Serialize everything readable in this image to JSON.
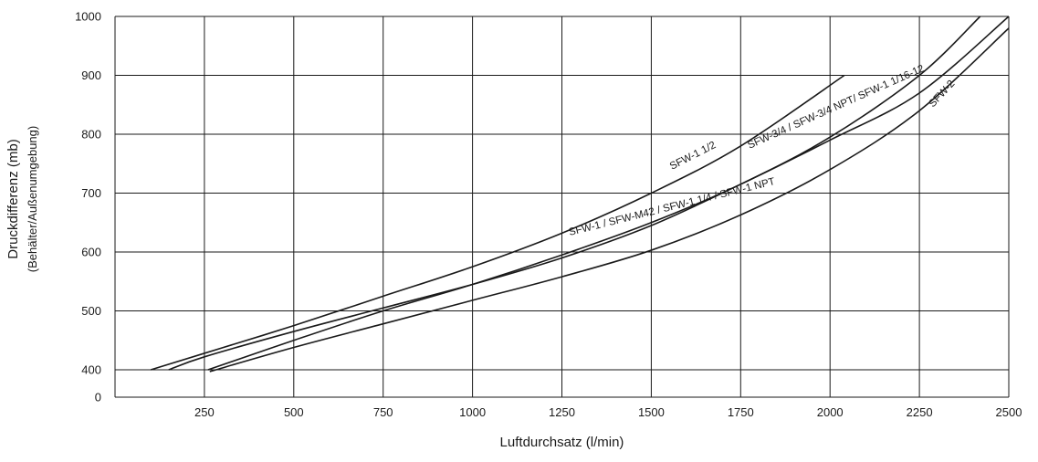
{
  "chart_data": {
    "type": "line",
    "title": "",
    "xlabel": "Luftdurchsatz (l/min)",
    "ylabel": "Druckdifferenz (mb)",
    "ylabel_sub": "(Behälter/Außenumgebung)",
    "xlim": [
      0,
      2500
    ],
    "ylim": [
      300,
      1000
    ],
    "x_ticks": [
      250,
      500,
      750,
      1000,
      1250,
      1500,
      1750,
      2000,
      2250,
      2500
    ],
    "y_ticks": [
      400,
      500,
      600,
      700,
      800,
      900,
      1000
    ],
    "y_origin_label": "0",
    "grid": true,
    "legend": "none",
    "series": [
      {
        "name": "SFW-1 1/2",
        "x": [
          100,
          250,
          500,
          750,
          1000,
          1250,
          1500,
          1750,
          2040
        ],
        "y": [
          400,
          428,
          475,
          525,
          575,
          632,
          700,
          780,
          900
        ]
      },
      {
        "name": "SFW-3/4 / SFW-3/4 NPT/ SFW-1 1/16-12",
        "x": [
          150,
          250,
          500,
          750,
          1000,
          1250,
          1500,
          1750,
          2000,
          2250,
          2500
        ],
        "y": [
          400,
          422,
          465,
          505,
          545,
          590,
          645,
          715,
          790,
          870,
          1000
        ]
      },
      {
        "name": "SFW-1 / SFW-M42 / SFW-1 1/4 / SFW-1 NPT",
        "x": [
          260,
          500,
          750,
          1000,
          1250,
          1500,
          1750,
          2000,
          2250,
          2420
        ],
        "y": [
          400,
          450,
          500,
          545,
          595,
          650,
          715,
          795,
          900,
          1000
        ]
      },
      {
        "name": "SFW-2",
        "x": [
          265,
          500,
          750,
          1000,
          1250,
          1500,
          1750,
          2000,
          2250,
          2500
        ],
        "y": [
          397,
          438,
          478,
          518,
          558,
          603,
          663,
          740,
          840,
          980
        ]
      }
    ]
  }
}
